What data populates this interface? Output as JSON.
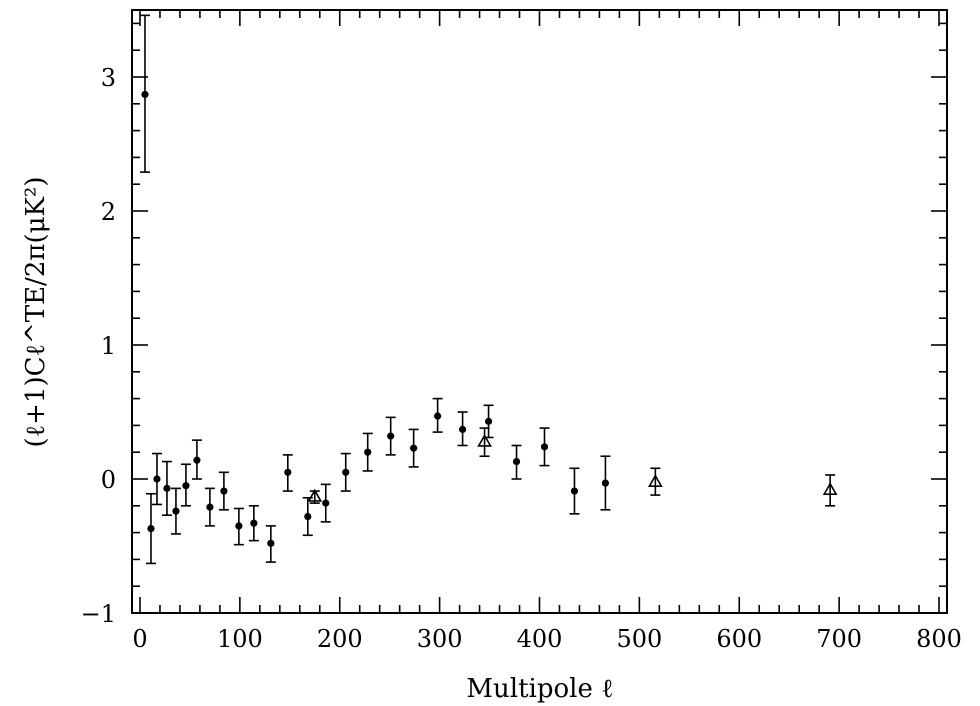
{
  "chart_data": {
    "type": "scatter",
    "title": "",
    "xlabel": "Multipole ℓ",
    "ylabel": "(ℓ+1)Cℓ^TE/2π(μK²)",
    "xlim": [
      -8,
      808
    ],
    "ylim": [
      -1,
      3.5
    ],
    "x_ticks": [
      0,
      100,
      200,
      300,
      400,
      500,
      600,
      700,
      800
    ],
    "y_ticks": [
      -1,
      0,
      1,
      2,
      3
    ],
    "x_tick_labels": [
      "0",
      "100",
      "200",
      "300",
      "400",
      "500",
      "600",
      "700",
      "800"
    ],
    "y_tick_labels": [
      "−1",
      "0",
      "1",
      "2",
      "3"
    ],
    "grid": false,
    "series": [
      {
        "marker": "circle",
        "points": [
          {
            "x": 5,
            "y": 2.87,
            "lo": 2.29,
            "hi": 3.46
          },
          {
            "x": 11,
            "y": -0.37,
            "lo": -0.63,
            "hi": -0.11
          },
          {
            "x": 17,
            "y": 0.0,
            "lo": -0.19,
            "hi": 0.19
          },
          {
            "x": 27,
            "y": -0.07,
            "lo": -0.27,
            "hi": 0.13
          },
          {
            "x": 36,
            "y": -0.24,
            "lo": -0.41,
            "hi": -0.07
          },
          {
            "x": 46,
            "y": -0.05,
            "lo": -0.2,
            "hi": 0.11
          },
          {
            "x": 57,
            "y": 0.14,
            "lo": 0.0,
            "hi": 0.29
          },
          {
            "x": 70,
            "y": -0.21,
            "lo": -0.35,
            "hi": -0.07
          },
          {
            "x": 84,
            "y": -0.09,
            "lo": -0.23,
            "hi": 0.05
          },
          {
            "x": 99,
            "y": -0.35,
            "lo": -0.49,
            "hi": -0.22
          },
          {
            "x": 114,
            "y": -0.33,
            "lo": -0.46,
            "hi": -0.2
          },
          {
            "x": 131,
            "y": -0.48,
            "lo": -0.62,
            "hi": -0.35
          },
          {
            "x": 148,
            "y": 0.05,
            "lo": -0.09,
            "hi": 0.18
          },
          {
            "x": 168,
            "y": -0.28,
            "lo": -0.42,
            "hi": -0.14
          },
          {
            "x": 186,
            "y": -0.18,
            "lo": -0.32,
            "hi": -0.04
          },
          {
            "x": 206,
            "y": 0.05,
            "lo": -0.09,
            "hi": 0.19
          },
          {
            "x": 228,
            "y": 0.2,
            "lo": 0.06,
            "hi": 0.34
          },
          {
            "x": 251,
            "y": 0.32,
            "lo": 0.18,
            "hi": 0.46
          },
          {
            "x": 274,
            "y": 0.23,
            "lo": 0.09,
            "hi": 0.37
          },
          {
            "x": 298,
            "y": 0.47,
            "lo": 0.35,
            "hi": 0.6
          },
          {
            "x": 323,
            "y": 0.37,
            "lo": 0.25,
            "hi": 0.5
          },
          {
            "x": 349,
            "y": 0.43,
            "lo": 0.31,
            "hi": 0.55
          },
          {
            "x": 377,
            "y": 0.13,
            "lo": 0.0,
            "hi": 0.25
          },
          {
            "x": 405,
            "y": 0.24,
            "lo": 0.1,
            "hi": 0.38
          },
          {
            "x": 435,
            "y": -0.09,
            "lo": -0.26,
            "hi": 0.08
          },
          {
            "x": 466,
            "y": -0.03,
            "lo": -0.23,
            "hi": 0.17
          }
        ]
      },
      {
        "marker": "triangle-open",
        "points": [
          {
            "x": 175,
            "y": -0.13,
            "lo": -0.18,
            "hi": -0.09
          },
          {
            "x": 345,
            "y": 0.28,
            "lo": 0.17,
            "hi": 0.38
          },
          {
            "x": 516,
            "y": -0.02,
            "lo": -0.12,
            "hi": 0.08
          },
          {
            "x": 691,
            "y": -0.08,
            "lo": -0.2,
            "hi": 0.03
          }
        ]
      }
    ]
  }
}
